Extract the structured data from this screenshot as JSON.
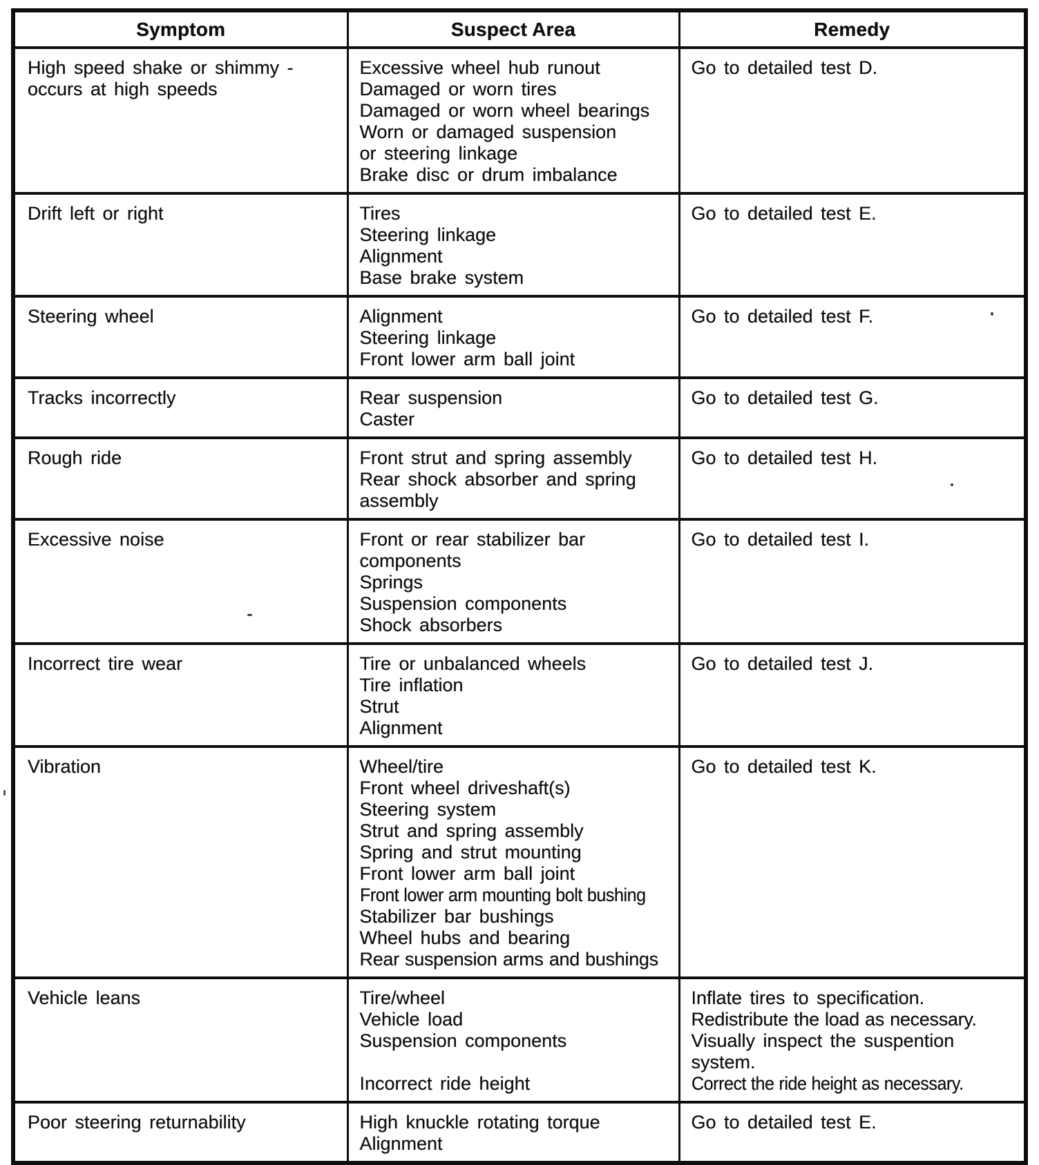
{
  "table": {
    "headers": [
      "Symptom",
      "Suspect Area",
      "Remedy"
    ],
    "rows": [
      {
        "symptom": [
          "High speed shake or shimmy -",
          "occurs at high speeds"
        ],
        "suspect_area": [
          "Excessive wheel hub runout",
          "Damaged or worn tires",
          "Damaged or worn wheel bearings",
          "Worn or damaged suspension",
          "or steering linkage",
          "Brake disc or drum imbalance"
        ],
        "remedy": [
          "Go to detailed test D."
        ]
      },
      {
        "symptom": [
          "Drift left or right"
        ],
        "suspect_area": [
          "Tires",
          "Steering linkage",
          "Alignment",
          "Base brake system"
        ],
        "remedy": [
          "Go to detailed test E."
        ]
      },
      {
        "symptom": [
          "Steering wheel"
        ],
        "suspect_area": [
          "Alignment",
          "Steering linkage",
          "Front lower arm ball joint"
        ],
        "remedy": [
          "Go to detailed test F."
        ]
      },
      {
        "symptom": [
          "Tracks incorrectly"
        ],
        "suspect_area": [
          "Rear suspension",
          "Caster"
        ],
        "remedy": [
          "Go to detailed test G."
        ]
      },
      {
        "symptom": [
          "Rough ride"
        ],
        "suspect_area": [
          "Front strut and spring assembly",
          "Rear shock absorber and spring",
          "assembly"
        ],
        "remedy": [
          "Go to detailed test H."
        ]
      },
      {
        "symptom": [
          "Excessive noise"
        ],
        "suspect_area": [
          "Front or rear stabilizer bar",
          "components",
          "Springs",
          "Suspension components",
          "Shock absorbers"
        ],
        "remedy": [
          "Go to detailed test I."
        ]
      },
      {
        "symptom": [
          "Incorrect tire wear"
        ],
        "suspect_area": [
          "Tire or unbalanced wheels",
          "Tire inflation",
          "Strut",
          "Alignment"
        ],
        "remedy": [
          "Go to detailed test J."
        ]
      },
      {
        "symptom": [
          "Vibration"
        ],
        "suspect_area": [
          "Wheel/tire",
          "Front wheel driveshaft(s)",
          "Steering system",
          "Strut and spring assembly",
          "Spring and strut mounting",
          "Front lower arm ball joint",
          "Front lower arm mounting bolt bushing",
          "Stabilizer bar bushings",
          "Wheel hubs and bearing",
          "Rear suspension arms and bushings"
        ],
        "remedy": [
          "Go to detailed test K."
        ]
      },
      {
        "symptom": [
          "Vehicle leans"
        ],
        "suspect_area": [
          "Tire/wheel",
          "Vehicle load",
          "Suspension components",
          "",
          "Incorrect ride height"
        ],
        "remedy": [
          "Inflate tires to specification.",
          "Redistribute the load as necessary.",
          "Visually inspect the suspention",
          "system.",
          "Correct the ride height as necessary."
        ]
      },
      {
        "symptom": [
          "Poor steering returnability"
        ],
        "suspect_area": [
          "High knuckle rotating torque",
          "Alignment"
        ],
        "remedy": [
          "Go to detailed test E."
        ]
      }
    ]
  },
  "colors": {
    "text": "#0e0e0e",
    "border": "#0e0e0e",
    "background": "#ffffff"
  }
}
